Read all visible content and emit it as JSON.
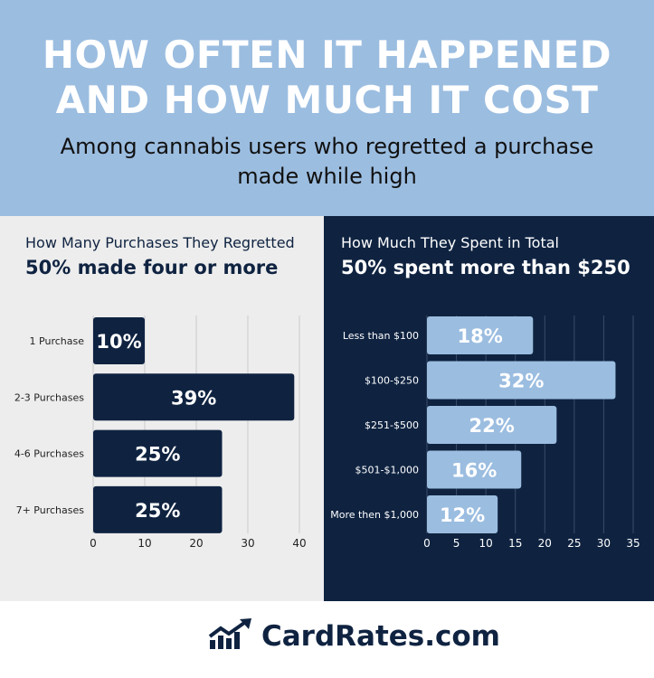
{
  "header": {
    "title_line1": "HOW OFTEN IT HAPPENED",
    "title_line2": "AND HOW MUCH IT COST",
    "subtitle_line1": "Among cannabis users who regretted a purchase",
    "subtitle_line2": "made while high"
  },
  "left_panel": {
    "title": "How Many Purchases They Regretted",
    "headline": "50% made four or more"
  },
  "right_panel": {
    "title": "How Much They Spent in Total",
    "headline": "50% spent more than $250"
  },
  "footer": {
    "brand": "CardRates.com",
    "icon": "trending-chart-logo-icon"
  },
  "colors": {
    "header_bg": "#9bbde0",
    "navy": "#0f2341",
    "light_bar": "#9bbde0",
    "left_bg": "#ededed",
    "grid_light": "#cccccc",
    "grid_dark": "#3a4b66"
  },
  "chart_data": [
    {
      "type": "bar",
      "orientation": "horizontal",
      "title": "How Many Purchases They Regretted",
      "categories": [
        "1 Purchase",
        "2-3 Purchases",
        "4-6 Purchases",
        "7+ Purchases"
      ],
      "values": [
        10,
        39,
        25,
        25
      ],
      "data_labels": [
        "10%",
        "39%",
        "25%",
        "25%"
      ],
      "xlim": [
        0,
        40
      ],
      "xticks": [
        0,
        10,
        20,
        30,
        40
      ],
      "grid": true
    },
    {
      "type": "bar",
      "orientation": "horizontal",
      "title": "How Much They Spent in Total",
      "categories": [
        "Less than $100",
        "$100-$250",
        "$251-$500",
        "$501-$1,000",
        "More then $1,000"
      ],
      "values": [
        18,
        32,
        22,
        16,
        12
      ],
      "data_labels": [
        "18%",
        "32%",
        "22%",
        "16%",
        "12%"
      ],
      "xlim": [
        0,
        35
      ],
      "xticks": [
        0,
        5,
        10,
        15,
        20,
        25,
        30,
        35
      ],
      "grid": true
    }
  ]
}
